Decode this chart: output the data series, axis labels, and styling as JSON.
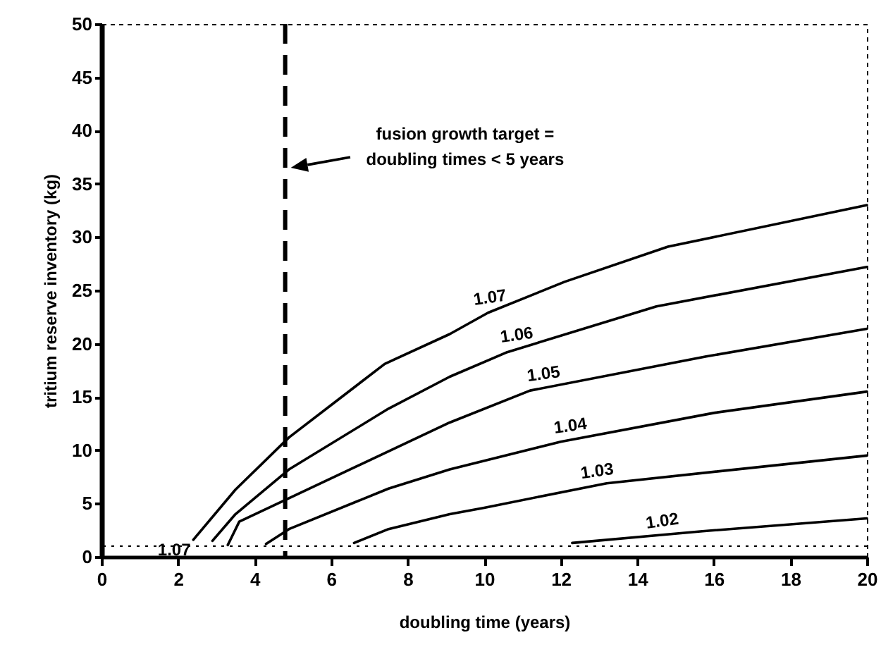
{
  "chart_data": {
    "type": "line",
    "xlabel": "doubling time (years)",
    "ylabel": "tritium reserve inventory (kg)",
    "xlim": [
      0,
      20
    ],
    "ylim": [
      0,
      50
    ],
    "xticks": [
      0,
      2,
      4,
      6,
      8,
      10,
      12,
      14,
      16,
      18,
      20
    ],
    "yticks": [
      0,
      5,
      10,
      15,
      20,
      25,
      30,
      35,
      40,
      45,
      50
    ],
    "grid": false,
    "marker": "none",
    "line_style": "solid",
    "series": [
      {
        "name": "1.07",
        "color": "#000000",
        "x": [
          2.4,
          3.5,
          4.9,
          7.4,
          9.1,
          10.1,
          12.1,
          14.8,
          20
        ],
        "values": [
          1.6,
          6.3,
          11.2,
          18.1,
          20.9,
          22.9,
          25.8,
          29.1,
          33
        ]
      },
      {
        "name": "1.06",
        "color": "#000000",
        "x": [
          2.9,
          3.5,
          4.9,
          7.5,
          9.1,
          10.6,
          14.5,
          20
        ],
        "values": [
          1.5,
          4,
          8.2,
          13.9,
          16.9,
          19.2,
          23.5,
          27.2
        ]
      },
      {
        "name": "1.05",
        "color": "#000000",
        "x": [
          3.3,
          3.6,
          4.9,
          7.5,
          9.1,
          11.2,
          15.8,
          20
        ],
        "values": [
          1.1,
          3.3,
          5.5,
          9.9,
          12.6,
          15.6,
          18.8,
          21.4
        ]
      },
      {
        "name": "1.04",
        "color": "#000000",
        "x": [
          4.3,
          4.9,
          7.5,
          9.1,
          12,
          16,
          20
        ],
        "values": [
          1.2,
          2.6,
          6.4,
          8.2,
          10.8,
          13.5,
          15.5
        ]
      },
      {
        "name": "1.03",
        "color": "#000000",
        "x": [
          6.6,
          7.5,
          9.1,
          10,
          13.2,
          20
        ],
        "values": [
          1.3,
          2.6,
          4,
          4.6,
          6.9,
          9.5
        ]
      },
      {
        "name": "1.02",
        "color": "#000000",
        "x": [
          12.3,
          15.7,
          20
        ],
        "values": [
          1.3,
          2.4,
          3.6
        ]
      }
    ],
    "ref_lines": [
      {
        "axis": "x",
        "value": 4.8,
        "line_style": "dashed",
        "color": "#000000"
      },
      {
        "axis": "y",
        "value": 1,
        "line_style": "dotted",
        "color": "#000000"
      }
    ],
    "annotations": [
      "fusion growth target =\ndoubling times < 5 years",
      "1.07"
    ]
  }
}
